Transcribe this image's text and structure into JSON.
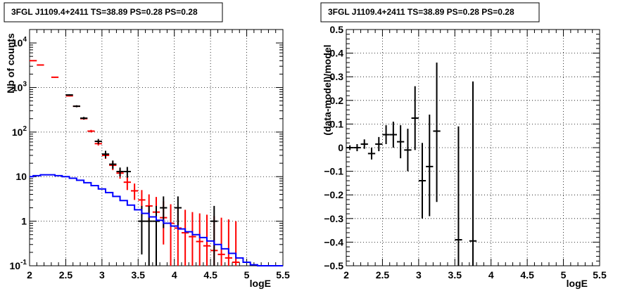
{
  "chart_data": [
    {
      "type": "scatter",
      "title": "3FGL J1109.4+2411 TS=38.89 PS=0.28 PS=0.28",
      "xlabel": "logE",
      "ylabel": "Nb of counts",
      "xlim": [
        2,
        5.5
      ],
      "ylim": [
        0.1,
        20000
      ],
      "yscale": "log",
      "grid": true,
      "x_ticks": [
        "2",
        "2.5",
        "3",
        "3.5",
        "4",
        "4.5",
        "5",
        "5.5"
      ],
      "y_ticks": [
        {
          "v": 0.1,
          "base": "10",
          "exp": "-1"
        },
        {
          "v": 1,
          "base": "1",
          "exp": ""
        },
        {
          "v": 10,
          "base": "10",
          "exp": ""
        },
        {
          "v": 100,
          "base": "10",
          "exp": "2"
        },
        {
          "v": 1000,
          "base": "10",
          "exp": "3"
        },
        {
          "v": 10000,
          "base": "10",
          "exp": "4"
        }
      ],
      "series": [
        {
          "color": "#ff0000",
          "points": [
            {
              "x": 2.05,
              "y": 4000,
              "lo": 3950,
              "hi": 4050
            },
            {
              "x": 2.15,
              "y": 3200,
              "lo": 3150,
              "hi": 3250
            },
            {
              "x": 2.35,
              "y": 1700,
              "lo": 1650,
              "hi": 1750
            },
            {
              "x": 2.55,
              "y": 650,
              "lo": 630,
              "hi": 670
            },
            {
              "x": 2.65,
              "y": 380,
              "lo": 365,
              "hi": 395
            },
            {
              "x": 2.75,
              "y": 200,
              "lo": 190,
              "hi": 210
            },
            {
              "x": 2.85,
              "y": 105,
              "lo": 98,
              "hi": 112
            },
            {
              "x": 2.95,
              "y": 55,
              "lo": 50,
              "hi": 60
            },
            {
              "x": 3.05,
              "y": 30,
              "lo": 25,
              "hi": 35
            },
            {
              "x": 3.15,
              "y": 18,
              "lo": 14,
              "hi": 22
            },
            {
              "x": 3.25,
              "y": 12,
              "lo": 9,
              "hi": 15
            },
            {
              "x": 3.35,
              "y": 7.5,
              "lo": 5,
              "hi": 10
            },
            {
              "x": 3.45,
              "y": 4.8,
              "lo": 3,
              "hi": 7
            },
            {
              "x": 3.55,
              "y": 3,
              "lo": 1.3,
              "hi": 5
            },
            {
              "x": 3.65,
              "y": 2.2,
              "lo": 1,
              "hi": 4
            },
            {
              "x": 3.75,
              "y": 1.6,
              "lo": 0.5,
              "hi": 3.5
            },
            {
              "x": 3.85,
              "y": 1.2,
              "lo": 0.3,
              "hi": 2.8
            },
            {
              "x": 3.95,
              "y": 0.9,
              "lo": 0.1,
              "hi": 2.4
            },
            {
              "x": 4.05,
              "y": 0.7,
              "lo": 0.1,
              "hi": 2.0
            },
            {
              "x": 4.15,
              "y": 0.55,
              "lo": 0.1,
              "hi": 1.8
            },
            {
              "x": 4.25,
              "y": 0.45,
              "lo": 0.1,
              "hi": 1.6
            },
            {
              "x": 4.35,
              "y": 0.35,
              "lo": 0.1,
              "hi": 1.5
            },
            {
              "x": 4.45,
              "y": 0.28,
              "lo": 0.1,
              "hi": 1.4
            },
            {
              "x": 4.55,
              "y": 0.22,
              "lo": 0.1,
              "hi": 1.3
            },
            {
              "x": 4.65,
              "y": 0.18,
              "lo": 0.1,
              "hi": 1.2
            },
            {
              "x": 4.75,
              "y": 0.15,
              "lo": 0.1,
              "hi": 1.1
            },
            {
              "x": 4.85,
              "y": 0.12,
              "lo": 0.1,
              "hi": 1.0
            }
          ]
        },
        {
          "color": "#000000",
          "points": [
            {
              "x": 2.55,
              "y": 680,
              "lo": 655,
              "hi": 705
            },
            {
              "x": 2.65,
              "y": 380,
              "lo": 360,
              "hi": 400
            },
            {
              "x": 2.75,
              "y": 205,
              "lo": 191,
              "hi": 219
            },
            {
              "x": 2.95,
              "y": 62,
              "lo": 54,
              "hi": 70
            },
            {
              "x": 3.05,
              "y": 32,
              "lo": 26,
              "hi": 38
            },
            {
              "x": 3.15,
              "y": 19,
              "lo": 15,
              "hi": 23
            },
            {
              "x": 3.25,
              "y": 13,
              "lo": 10,
              "hi": 16
            },
            {
              "x": 3.35,
              "y": 13,
              "lo": 9.5,
              "hi": 16.5
            },
            {
              "x": 3.55,
              "y": 1,
              "lo": 0.18,
              "hi": 2.2
            },
            {
              "x": 3.65,
              "y": 1,
              "lo": 0.1,
              "hi": 2.2
            },
            {
              "x": 3.75,
              "y": 1,
              "lo": 0.1,
              "hi": 2.2
            },
            {
              "x": 3.85,
              "y": 2,
              "lo": 0.7,
              "hi": 3.6
            },
            {
              "x": 4.05,
              "y": 2,
              "lo": 0.7,
              "hi": 3.6
            },
            {
              "x": 4.55,
              "y": 1,
              "lo": 0.1,
              "hi": 2.2
            }
          ]
        },
        {
          "color": "#0000ff",
          "step": true,
          "x": [
            2.0,
            2.05,
            2.15,
            2.25,
            2.35,
            2.45,
            2.55,
            2.65,
            2.75,
            2.85,
            2.95,
            3.05,
            3.15,
            3.25,
            3.35,
            3.45,
            3.55,
            3.65,
            3.75,
            3.85,
            3.95,
            4.05,
            4.15,
            4.25,
            4.35,
            4.45,
            4.55,
            4.65,
            4.75,
            4.85,
            4.95,
            5.05,
            5.15,
            5.25,
            5.35,
            5.45
          ],
          "values": [
            10,
            10.5,
            11,
            11,
            10.5,
            10,
            9.2,
            8.3,
            7.3,
            6.3,
            5.3,
            4.4,
            3.6,
            2.9,
            2.3,
            1.8,
            1.5,
            1.25,
            1.05,
            0.9,
            0.78,
            0.67,
            0.58,
            0.5,
            0.43,
            0.36,
            0.3,
            0.24,
            0.19,
            0.15,
            0.12,
            0.105,
            0.1,
            0.1,
            0.1,
            0.1
          ]
        }
      ]
    },
    {
      "type": "scatter",
      "title": "3FGL J1109.4+2411 TS=38.89 PS=0.28 PS=0.28",
      "xlabel": "logE",
      "ylabel": "(data-model)/model",
      "xlim": [
        2,
        5.5
      ],
      "ylim": [
        -0.5,
        0.5
      ],
      "grid": true,
      "x_ticks": [
        "2",
        "2.5",
        "3",
        "3.5",
        "4",
        "4.5",
        "5",
        "5.5"
      ],
      "y_ticks": [
        "−0.5",
        "−0.4",
        "−0.3",
        "−0.2",
        "−0.1",
        "0",
        "0.1",
        "0.2",
        "0.3",
        "0.4",
        "0.5"
      ],
      "series": [
        {
          "color": "#000000",
          "points": [
            {
              "x": 2.05,
              "y": 0.0,
              "lo": -0.01,
              "hi": 0.01
            },
            {
              "x": 2.15,
              "y": 0.0,
              "lo": -0.015,
              "hi": 0.015
            },
            {
              "x": 2.25,
              "y": 0.015,
              "lo": -0.005,
              "hi": 0.035
            },
            {
              "x": 2.35,
              "y": -0.025,
              "lo": -0.05,
              "hi": 0.0
            },
            {
              "x": 2.45,
              "y": 0.015,
              "lo": -0.015,
              "hi": 0.045
            },
            {
              "x": 2.55,
              "y": 0.055,
              "lo": 0.015,
              "hi": 0.095
            },
            {
              "x": 2.65,
              "y": 0.055,
              "lo": 0.0,
              "hi": 0.11
            },
            {
              "x": 2.75,
              "y": 0.025,
              "lo": -0.045,
              "hi": 0.095
            },
            {
              "x": 2.85,
              "y": -0.01,
              "lo": -0.1,
              "hi": 0.08
            },
            {
              "x": 2.95,
              "y": 0.125,
              "lo": -0.01,
              "hi": 0.26
            },
            {
              "x": 3.05,
              "y": -0.14,
              "lo": -0.3,
              "hi": 0.02
            },
            {
              "x": 3.15,
              "y": -0.08,
              "lo": -0.29,
              "hi": 0.14
            },
            {
              "x": 3.25,
              "y": 0.07,
              "lo": -0.23,
              "hi": 0.36
            },
            {
              "x": 3.55,
              "y": -0.39,
              "lo": -0.5,
              "hi": 0.09
            },
            {
              "x": 3.75,
              "y": -0.395,
              "lo": -0.5,
              "hi": 0.28
            }
          ]
        }
      ]
    }
  ]
}
